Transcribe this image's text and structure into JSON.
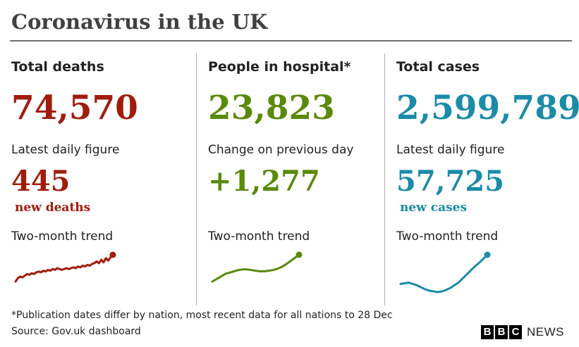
{
  "header": {
    "title": "Coronavirus in the UK"
  },
  "colors": {
    "deaths": "#a01c0c",
    "hospital": "#5a8a0c",
    "cases": "#1a8ba8"
  },
  "chart_data": [
    {
      "type": "line",
      "title": "Total deaths",
      "total": "74,570",
      "daily_label": "Latest daily figure",
      "daily_value": "445",
      "daily_unit": "new deaths",
      "trend_label": "Two-month trend",
      "series": [
        {
          "values": [
            18,
            22,
            24,
            23,
            25,
            27,
            26,
            28,
            27,
            29,
            30,
            29,
            31,
            30,
            32,
            31,
            33,
            32,
            34,
            33,
            32,
            33,
            34,
            33,
            34,
            35,
            34,
            36,
            35,
            37,
            36,
            38,
            37,
            39,
            40,
            42,
            40,
            44,
            41,
            46,
            43,
            47,
            50
          ]
        }
      ]
    },
    {
      "type": "line",
      "title": "People in hospital*",
      "total": "23,823",
      "daily_label": "Change on previous day",
      "daily_value": "+1,277",
      "daily_unit": "",
      "trend_label": "Two-month trend",
      "series": [
        {
          "values": [
            12,
            14,
            16,
            18,
            19,
            20,
            21,
            21.5,
            21.5,
            21,
            20.5,
            20,
            20,
            20.5,
            21,
            22,
            23.5,
            25.5,
            28,
            30.5,
            33
          ]
        }
      ]
    },
    {
      "type": "line",
      "title": "Total cases",
      "total": "2,599,789",
      "daily_label": "Latest daily figure",
      "daily_value": "57,725",
      "daily_unit": "new cases",
      "trend_label": "Two-month trend",
      "series": [
        {
          "values": [
            22,
            23,
            24,
            22,
            20,
            17,
            14,
            12,
            11,
            10,
            11,
            13,
            16,
            20,
            24,
            30,
            36,
            42,
            48,
            53,
            59,
            65
          ]
        }
      ]
    }
  ],
  "footer": {
    "footnote": "*Publication dates differ by nation, most recent data for all nations to 28 Dec",
    "source": "Source: Gov.uk dashboard",
    "logo_letters": [
      "B",
      "B",
      "C"
    ],
    "logo_word": "NEWS"
  }
}
